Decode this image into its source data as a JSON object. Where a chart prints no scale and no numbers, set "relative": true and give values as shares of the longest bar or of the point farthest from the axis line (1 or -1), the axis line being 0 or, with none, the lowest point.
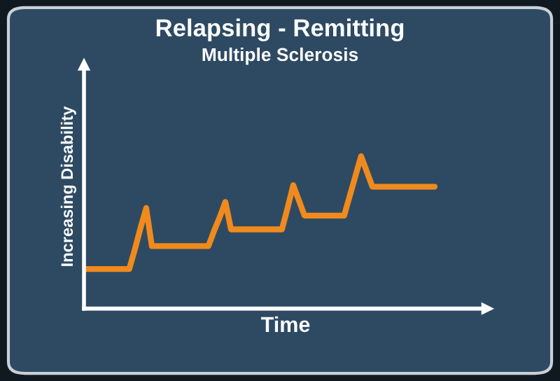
{
  "chart_data": {
    "type": "line",
    "title": "Relapsing - Remitting",
    "subtitle": "Multiple Sclerosis",
    "xlabel": "Time",
    "ylabel": "Increasing Disability",
    "relative": true,
    "categories": [
      null,
      null,
      null,
      null,
      null,
      null,
      null,
      null,
      null,
      null,
      null,
      null,
      null,
      null,
      null,
      null,
      null,
      null,
      null,
      null,
      null,
      null,
      null,
      null,
      null,
      null,
      null,
      null,
      null,
      null,
      null,
      null,
      null,
      null,
      null,
      null,
      null,
      null,
      null,
      null,
      null,
      null,
      null,
      null,
      null,
      null,
      null,
      null,
      null,
      null,
      null,
      null,
      null,
      null,
      null,
      null,
      null,
      null,
      null,
      null,
      null,
      null,
      null
    ],
    "series": [
      {
        "color": "#f08a1c",
        "values": [
          0.26,
          0.26,
          0.26,
          0.26,
          0.26,
          0.26,
          0.26,
          0.26,
          0.26,
          0.39,
          0.53,
          0.66,
          0.41,
          0.41,
          0.41,
          0.41,
          0.41,
          0.41,
          0.41,
          0.41,
          0.41,
          0.41,
          0.41,
          0.51,
          0.6,
          0.7,
          0.52,
          0.52,
          0.52,
          0.52,
          0.52,
          0.52,
          0.52,
          0.52,
          0.52,
          0.52,
          0.66,
          0.81,
          0.71,
          0.61,
          0.61,
          0.61,
          0.61,
          0.61,
          0.61,
          0.61,
          0.61,
          0.74,
          0.87,
          1,
          0.9,
          0.8,
          0.8,
          0.8,
          0.8,
          0.8,
          0.8,
          0.8,
          0.8,
          0.8,
          0.8,
          0.8,
          0.8
        ]
      }
    ],
    "marker": "none",
    "line_style": "solid"
  }
}
